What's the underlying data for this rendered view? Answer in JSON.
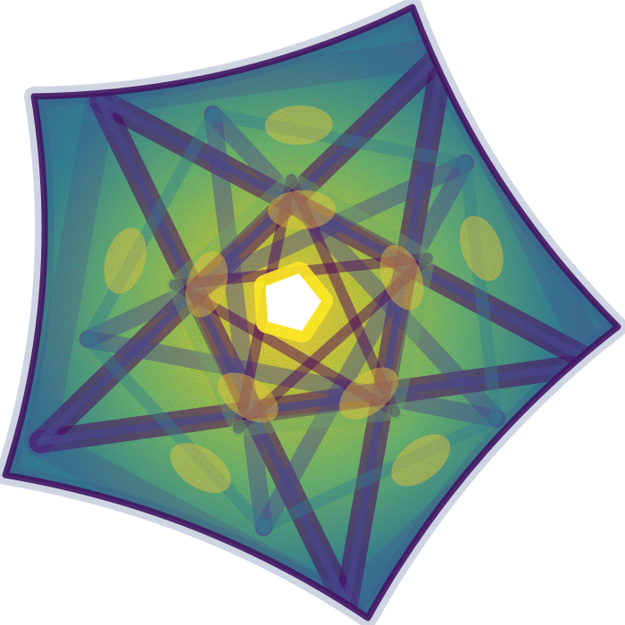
{
  "image": {
    "subject": "pentagonal-symmetry-chaos-attractor",
    "symmetry_order": 5,
    "colormap": [
      "#440154",
      "#3b528b",
      "#21918c",
      "#5ec962",
      "#fde725"
    ],
    "background": "#ffffff",
    "center_fill": "#ffffff"
  }
}
